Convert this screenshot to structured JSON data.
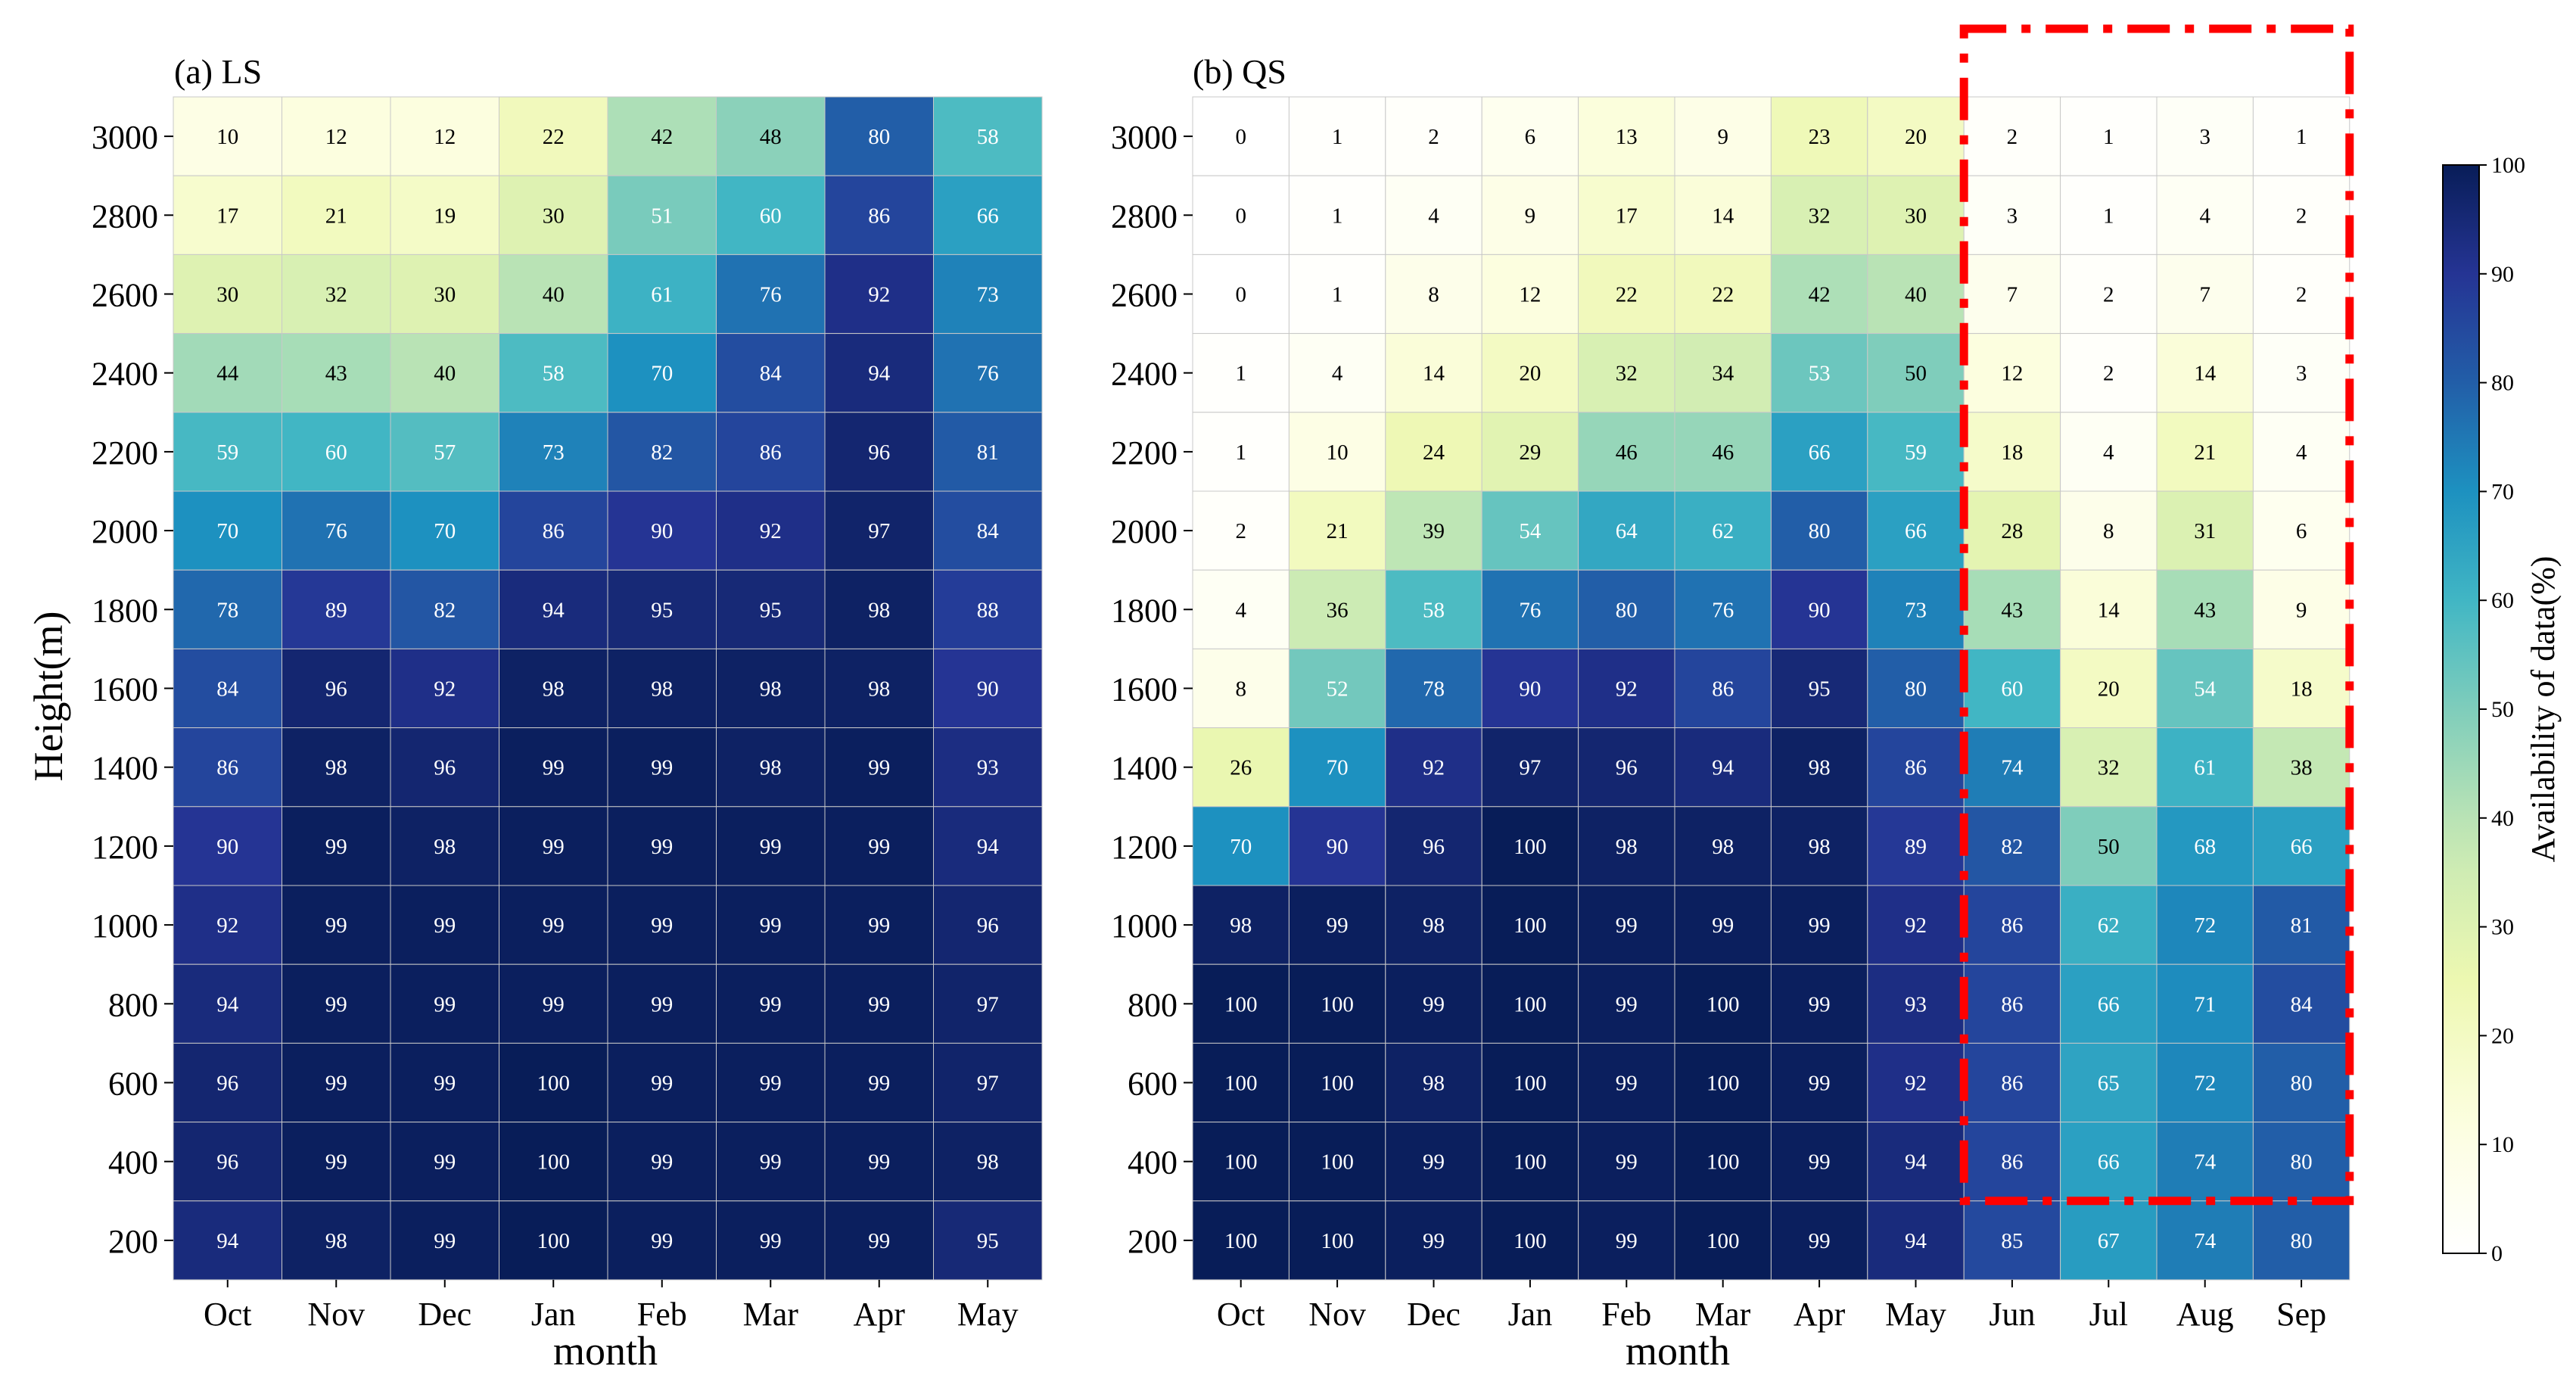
{
  "y_axis_label": "Height(m)",
  "colorbar": {
    "label": "Availability of data(%)",
    "min": 0,
    "max": 100,
    "ticks": [
      0,
      10,
      20,
      30,
      40,
      50,
      60,
      70,
      80,
      90,
      100
    ]
  },
  "chart_data": [
    {
      "type": "heatmap",
      "title": "(a) LS",
      "xlabel": "month",
      "ylabel": "Height(m)",
      "x": [
        "Oct",
        "Nov",
        "Dec",
        "Jan",
        "Feb",
        "Mar",
        "Apr",
        "May"
      ],
      "y": [
        3000,
        2800,
        2600,
        2400,
        2200,
        2000,
        1800,
        1600,
        1400,
        1200,
        1000,
        800,
        600,
        400,
        200
      ],
      "values": [
        [
          10,
          12,
          12,
          22,
          42,
          48,
          80,
          58
        ],
        [
          17,
          21,
          19,
          30,
          51,
          60,
          86,
          66
        ],
        [
          30,
          32,
          30,
          40,
          61,
          76,
          92,
          73
        ],
        [
          44,
          43,
          40,
          58,
          70,
          84,
          94,
          76
        ],
        [
          59,
          60,
          57,
          73,
          82,
          86,
          96,
          81
        ],
        [
          70,
          76,
          70,
          86,
          90,
          92,
          97,
          84
        ],
        [
          78,
          89,
          82,
          94,
          95,
          95,
          98,
          88
        ],
        [
          84,
          96,
          92,
          98,
          98,
          98,
          98,
          90
        ],
        [
          86,
          98,
          96,
          99,
          99,
          98,
          99,
          93
        ],
        [
          90,
          99,
          98,
          99,
          99,
          99,
          99,
          94
        ],
        [
          92,
          99,
          99,
          99,
          99,
          99,
          99,
          96
        ],
        [
          94,
          99,
          99,
          99,
          99,
          99,
          99,
          97
        ],
        [
          96,
          99,
          99,
          100,
          99,
          99,
          99,
          97
        ],
        [
          96,
          99,
          99,
          100,
          99,
          99,
          99,
          98
        ],
        [
          94,
          98,
          99,
          100,
          99,
          99,
          99,
          95
        ]
      ]
    },
    {
      "type": "heatmap",
      "title": "(b) QS",
      "xlabel": "month",
      "ylabel": "",
      "x": [
        "Oct",
        "Nov",
        "Dec",
        "Jan",
        "Feb",
        "Mar",
        "Apr",
        "May",
        "Jun",
        "Jul",
        "Aug",
        "Sep"
      ],
      "y": [
        3000,
        2800,
        2600,
        2400,
        2200,
        2000,
        1800,
        1600,
        1400,
        1200,
        1000,
        800,
        600,
        400,
        200
      ],
      "values": [
        [
          0,
          1,
          2,
          6,
          13,
          9,
          23,
          20,
          2,
          1,
          3,
          1
        ],
        [
          0,
          1,
          4,
          9,
          17,
          14,
          32,
          30,
          3,
          1,
          4,
          2
        ],
        [
          0,
          1,
          8,
          12,
          22,
          22,
          42,
          40,
          7,
          2,
          7,
          2
        ],
        [
          1,
          4,
          14,
          20,
          32,
          34,
          53,
          50,
          12,
          2,
          14,
          3
        ],
        [
          1,
          10,
          24,
          29,
          46,
          46,
          66,
          59,
          18,
          4,
          21,
          4
        ],
        [
          2,
          21,
          39,
          54,
          64,
          62,
          80,
          66,
          28,
          8,
          31,
          6
        ],
        [
          4,
          36,
          58,
          76,
          80,
          76,
          90,
          73,
          43,
          14,
          43,
          9
        ],
        [
          8,
          52,
          78,
          90,
          92,
          86,
          95,
          80,
          60,
          20,
          54,
          18
        ],
        [
          26,
          70,
          92,
          97,
          96,
          94,
          98,
          86,
          74,
          32,
          61,
          38
        ],
        [
          70,
          90,
          96,
          100,
          98,
          98,
          98,
          89,
          82,
          50,
          68,
          66
        ],
        [
          98,
          99,
          98,
          100,
          99,
          99,
          99,
          92,
          86,
          62,
          72,
          81
        ],
        [
          100,
          100,
          99,
          100,
          99,
          100,
          99,
          93,
          86,
          66,
          71,
          84
        ],
        [
          100,
          100,
          98,
          100,
          99,
          100,
          99,
          92,
          86,
          65,
          72,
          80
        ],
        [
          100,
          100,
          99,
          100,
          99,
          100,
          99,
          94,
          86,
          66,
          74,
          80
        ],
        [
          100,
          100,
          99,
          100,
          99,
          100,
          99,
          94,
          85,
          67,
          74,
          80
        ]
      ],
      "highlight": {
        "style": "dash-dot",
        "color": "#ff0000",
        "columns": [
          "Jun",
          "Sep"
        ],
        "rows": [
          3000,
          400
        ]
      }
    }
  ]
}
